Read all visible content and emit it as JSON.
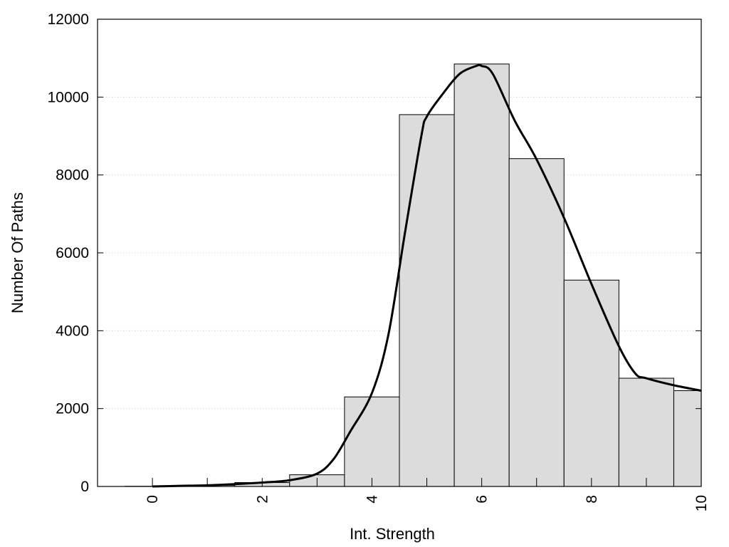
{
  "chart_data": {
    "type": "bar",
    "title": "",
    "xlabel": "Int. Strength",
    "ylabel": "Number Of Paths",
    "xlim": [
      -1,
      10
    ],
    "ylim": [
      0,
      12000
    ],
    "x_ticks": [
      0,
      2,
      4,
      6,
      8,
      10
    ],
    "y_ticks": [
      0,
      2000,
      4000,
      6000,
      8000,
      10000,
      12000
    ],
    "grid": "horizontal dotted",
    "legend": "none",
    "bars": {
      "centers": [
        0,
        1,
        2,
        3,
        4,
        5,
        6,
        7,
        8,
        9,
        10
      ],
      "values": [
        5,
        30,
        100,
        300,
        2300,
        9550,
        10850,
        8420,
        5300,
        2780,
        2460
      ]
    },
    "curve": {
      "x": [
        0,
        0.5,
        1,
        1.5,
        2,
        2.5,
        3,
        3.3,
        3.6,
        4,
        4.3,
        4.6,
        4.9,
        5,
        5.3,
        5.6,
        5.9,
        6,
        6.2,
        6.6,
        7,
        7.5,
        8,
        8.5,
        8.8,
        9,
        9.5,
        10
      ],
      "y": [
        0,
        15,
        30,
        60,
        100,
        160,
        330,
        700,
        1400,
        2400,
        3900,
        6500,
        9000,
        9500,
        10100,
        10600,
        10800,
        10800,
        10600,
        9400,
        8400,
        6900,
        5200,
        3600,
        2900,
        2780,
        2600,
        2460
      ]
    },
    "colors": {
      "bar_fill": "#dcdcdc",
      "bar_stroke": "#000000",
      "curve": "#000000",
      "grid": "#c8c8c8"
    }
  }
}
